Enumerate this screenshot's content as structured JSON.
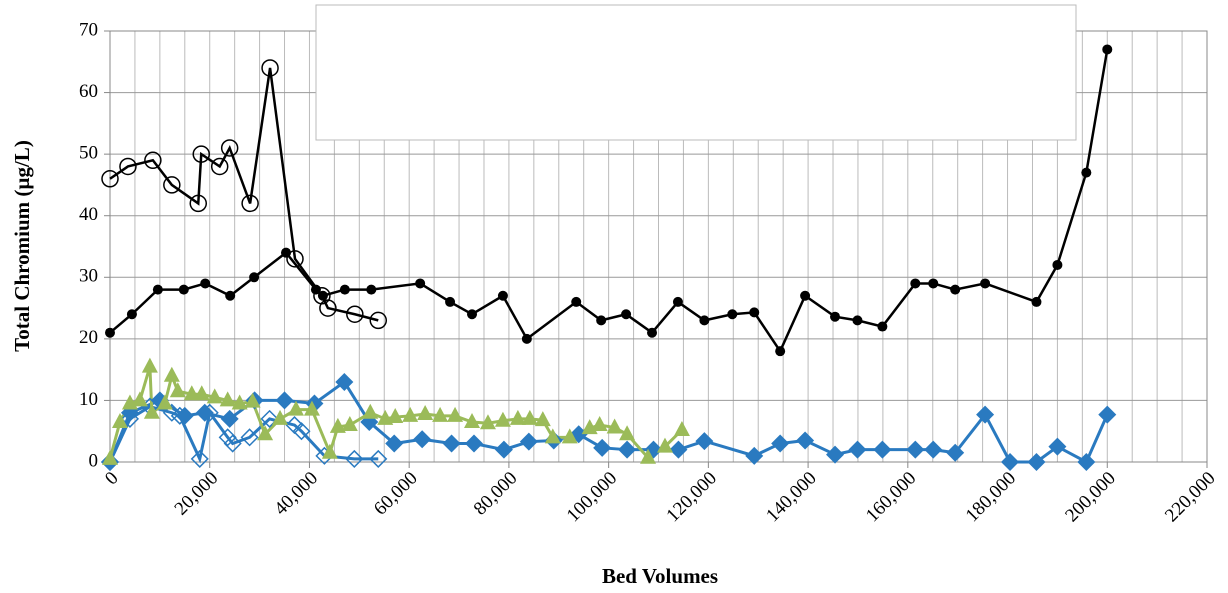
{
  "chart_data": {
    "type": "line",
    "x_label": "Bed Volumes",
    "y_label": "Total Chromium (µg/L)",
    "xlim": [
      0,
      220000
    ],
    "xticks": [
      {
        "value": 0,
        "label": "0"
      },
      {
        "value": 20000,
        "label": "20,000"
      },
      {
        "value": 40000,
        "label": "40,000"
      },
      {
        "value": 60000,
        "label": "60,000"
      },
      {
        "value": 80000,
        "label": "80,000"
      },
      {
        "value": 100000,
        "label": "100,000"
      },
      {
        "value": 120000,
        "label": "120,000"
      },
      {
        "value": 140000,
        "label": "140,000"
      },
      {
        "value": 160000,
        "label": "160,000"
      },
      {
        "value": 180000,
        "label": "180,000"
      },
      {
        "value": 200000,
        "label": "200,000"
      },
      {
        "value": 220000,
        "label": "220,000"
      }
    ],
    "ylim": [
      0,
      70
    ],
    "yticks": [
      0,
      10,
      20,
      30,
      40,
      50,
      60,
      70
    ],
    "grid": true,
    "x_minor_grid_step": 5000,
    "series": [
      {
        "color": "#000000",
        "marker": "circle-open",
        "x": [
          0,
          3600,
          8600,
          12400,
          17700,
          18300,
          22000,
          24000,
          28100,
          32100,
          37100,
          42500,
          43700,
          49100,
          53800
        ],
        "values": [
          46,
          48,
          49,
          45,
          42,
          50,
          48,
          51,
          42,
          64,
          33,
          27,
          25,
          24,
          23
        ]
      },
      {
        "color": "#000000",
        "marker": "circle-filled",
        "x": [
          0,
          4400,
          9600,
          14800,
          19100,
          24100,
          28900,
          35300,
          41300,
          42700,
          47100,
          52400,
          62200,
          68200,
          72600,
          78800,
          83600,
          93500,
          98500,
          103500,
          108700,
          113900,
          119200,
          124800,
          129200,
          134400,
          139400,
          145400,
          149900,
          154900,
          161500,
          165100,
          169500,
          175500,
          185800,
          190000,
          195800,
          200000
        ],
        "values": [
          21,
          24,
          28,
          28,
          29,
          27,
          30,
          34,
          28,
          27,
          28,
          28,
          29,
          26,
          24,
          27,
          20,
          26,
          23,
          24,
          21,
          26,
          23,
          24,
          24.3,
          18,
          27,
          23.6,
          23,
          22,
          29,
          29,
          28,
          29,
          26,
          32,
          47,
          67
        ]
      },
      {
        "color": "#2a7ac0",
        "marker": "diamond-filled",
        "x": [
          0,
          4000,
          10000,
          15000,
          19000,
          24000,
          29000,
          35000,
          41000,
          47000,
          52000,
          57000,
          62600,
          68500,
          73000,
          79000,
          84000,
          89000,
          94000,
          98700,
          103700,
          109000,
          114000,
          119200,
          129200,
          134400,
          139400,
          145400,
          149900,
          154900,
          161500,
          165100,
          169500,
          175500,
          180500,
          185800,
          190000,
          195800,
          200000
        ],
        "values": [
          0,
          8,
          10,
          7.5,
          8,
          7,
          10,
          10,
          9.5,
          13,
          6.5,
          3,
          3.7,
          3,
          3,
          2,
          3.3,
          3.5,
          4.5,
          2.3,
          2,
          2,
          2,
          3.4,
          1,
          3,
          3.5,
          1.2,
          2,
          2,
          2,
          2,
          1.5,
          7.7,
          0,
          0,
          2.5,
          0,
          7.7
        ]
      },
      {
        "color": "#2a7ac0",
        "marker": "diamond-open",
        "x": [
          0,
          4000,
          8000,
          12400,
          14000,
          18000,
          20000,
          23600,
          24600,
          28000,
          32000,
          37000,
          38400,
          43000,
          49000,
          53800
        ],
        "values": [
          0,
          7,
          9,
          8,
          7.5,
          0.5,
          8,
          4,
          3,
          4,
          7,
          6,
          5,
          1,
          0.5,
          0.5
        ]
      },
      {
        "color": "#9bbb59",
        "marker": "triangle",
        "x": [
          0,
          2000,
          4000,
          6000,
          8000,
          8400,
          11000,
          12400,
          13600,
          16400,
          18400,
          21000,
          23600,
          26000,
          28600,
          31100,
          34100,
          37300,
          40500,
          44100,
          45700,
          48100,
          52200,
          55200,
          57200,
          60200,
          63200,
          66200,
          69200,
          72600,
          75800,
          78800,
          81800,
          84200,
          86800,
          88800,
          92200,
          96200,
          98200,
          101200,
          103700,
          107900,
          111300,
          114700
        ],
        "values": [
          0.5,
          6.5,
          9.5,
          10,
          15.5,
          8,
          9.5,
          14,
          11.5,
          11,
          11,
          10.5,
          10,
          9.5,
          9.8,
          4.5,
          7,
          8.5,
          8.5,
          1.5,
          5.7,
          6,
          8,
          7,
          7.3,
          7.5,
          7.8,
          7.5,
          7.5,
          6.5,
          6.3,
          6.7,
          7,
          7,
          6.8,
          4,
          4,
          5.5,
          6,
          5.6,
          4.5,
          0.7,
          2.5,
          5.2
        ]
      }
    ]
  }
}
